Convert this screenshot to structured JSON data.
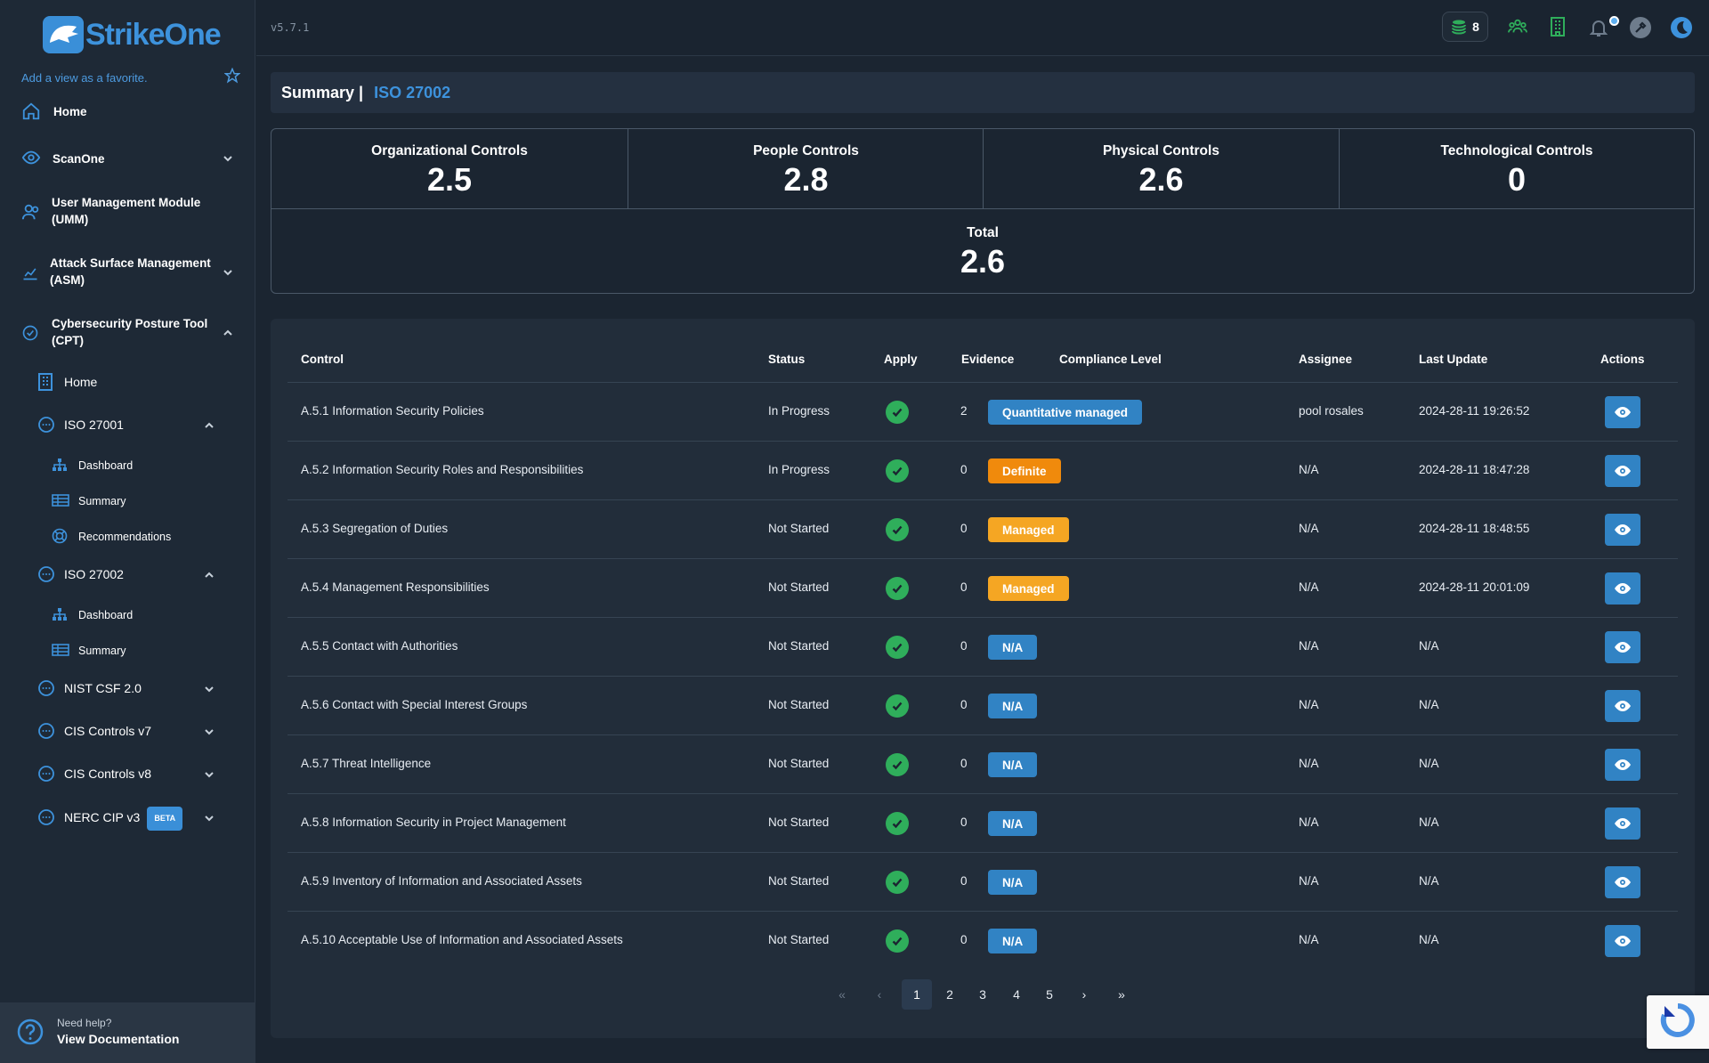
{
  "app": {
    "name": "StrikeOne",
    "version": "v5.7.1"
  },
  "sidebar": {
    "favorite_hint": "Add a view as a favorite.",
    "items": [
      {
        "label": "Home"
      },
      {
        "label": "ScanOne"
      },
      {
        "label": "User Management Module (UMM)"
      },
      {
        "label": "Attack Surface Management (ASM)"
      },
      {
        "label": "Cybersecurity Posture Tool (CPT)"
      }
    ],
    "cpt": {
      "home": "Home",
      "iso27001": {
        "label": "ISO 27001",
        "dashboard": "Dashboard",
        "summary": "Summary",
        "recommendations": "Recommendations"
      },
      "iso27002": {
        "label": "ISO 27002",
        "dashboard": "Dashboard",
        "summary": "Summary"
      },
      "nist": "NIST CSF 2.0",
      "cis7": "CIS Controls v7",
      "cis8": "CIS Controls v8",
      "nerc": "NERC CIP v3",
      "beta": "BETA"
    },
    "help": {
      "small": "Need help?",
      "big": "View Documentation"
    }
  },
  "topbar": {
    "credits": "8"
  },
  "page": {
    "title": "Summary |",
    "subtitle": "ISO 27002"
  },
  "summary": {
    "organizational": {
      "label": "Organizational Controls",
      "value": "2.5"
    },
    "people": {
      "label": "People Controls",
      "value": "2.8"
    },
    "physical": {
      "label": "Physical Controls",
      "value": "2.6"
    },
    "technological": {
      "label": "Technological Controls",
      "value": "0"
    },
    "total": {
      "label": "Total",
      "value": "2.6"
    }
  },
  "table": {
    "headers": [
      "Control",
      "Status",
      "Apply",
      "Evidence",
      "Compliance Level",
      "Assignee",
      "Last Update",
      "Actions"
    ],
    "rows": [
      {
        "control": "A.5.1 Information Security Policies",
        "status": "In Progress",
        "evidence": "2",
        "level": "Quantitative managed",
        "assignee": "pool rosales",
        "updated": "2024-28-11 19:26:52"
      },
      {
        "control": "A.5.2 Information Security Roles and Responsibilities",
        "status": "In Progress",
        "evidence": "0",
        "level": "Definite",
        "assignee": "N/A",
        "updated": "2024-28-11 18:47:28"
      },
      {
        "control": "A.5.3 Segregation of Duties",
        "status": "Not Started",
        "evidence": "0",
        "level": "Managed",
        "assignee": "N/A",
        "updated": "2024-28-11 18:48:55"
      },
      {
        "control": "A.5.4 Management Responsibilities",
        "status": "Not Started",
        "evidence": "0",
        "level": "Managed",
        "assignee": "N/A",
        "updated": "2024-28-11 20:01:09"
      },
      {
        "control": "A.5.5 Contact with Authorities",
        "status": "Not Started",
        "evidence": "0",
        "level": "N/A",
        "assignee": "N/A",
        "updated": "N/A"
      },
      {
        "control": "A.5.6 Contact with Special Interest Groups",
        "status": "Not Started",
        "evidence": "0",
        "level": "N/A",
        "assignee": "N/A",
        "updated": "N/A"
      },
      {
        "control": "A.5.7 Threat Intelligence",
        "status": "Not Started",
        "evidence": "0",
        "level": "N/A",
        "assignee": "N/A",
        "updated": "N/A"
      },
      {
        "control": "A.5.8 Information Security in Project Management",
        "status": "Not Started",
        "evidence": "0",
        "level": "N/A",
        "assignee": "N/A",
        "updated": "N/A"
      },
      {
        "control": "A.5.9 Inventory of Information and Associated Assets",
        "status": "Not Started",
        "evidence": "0",
        "level": "N/A",
        "assignee": "N/A",
        "updated": "N/A"
      },
      {
        "control": "A.5.10 Acceptable Use of Information and Associated Assets",
        "status": "Not Started",
        "evidence": "0",
        "level": "N/A",
        "assignee": "N/A",
        "updated": "N/A"
      }
    ]
  },
  "pagination": {
    "pages": [
      "1",
      "2",
      "3",
      "4",
      "5"
    ],
    "first": "«",
    "prev": "‹",
    "next": "›",
    "last": "»"
  },
  "colors": {
    "accent": "#3d92dc",
    "level_quantitative": "#3183c4",
    "level_definite": "#f08a0c",
    "level_managed": "#f5a623",
    "level_na": "#3183c4",
    "apply_check": "#2fae5b"
  }
}
